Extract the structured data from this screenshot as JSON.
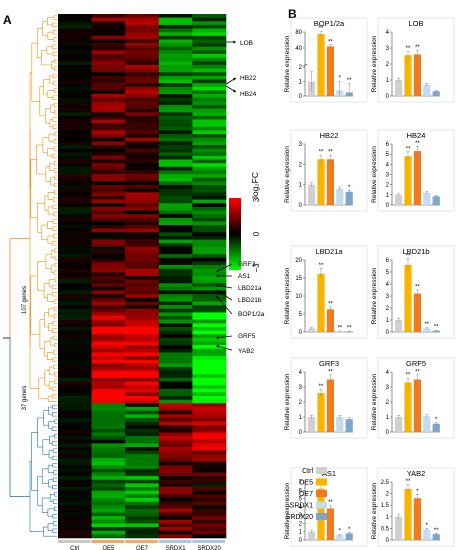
{
  "panel_a": {
    "label": "A",
    "gene_labels_top": [
      "LOB",
      "HB22",
      "HB24"
    ],
    "gene_labels_mid": [
      "GRF3",
      "AS1",
      "LBD21a",
      "LBD21b",
      "BOP1/2a"
    ],
    "gene_labels_bot": [
      "GRF5",
      "YAB2"
    ],
    "cluster_orange_label": "107 genes",
    "cluster_blue_label": "37 genes",
    "columns": [
      "Ctrl",
      "OE5",
      "OE7",
      "SRDX1",
      "SRDX20"
    ],
    "column_colors": [
      "#c8c8c8",
      "#f2a96b",
      "#f2a96b",
      "#a8c8e8",
      "#a8c8e8"
    ],
    "colorbar_title": "log₂FC",
    "colorbar_ticks": [
      "3",
      "0",
      "−3"
    ],
    "colors": {
      "high": "#ff0000",
      "mid": "#000000",
      "low": "#00ff00",
      "tree_orange": "#f0900a",
      "tree_blue": "#1f6fb5"
    }
  },
  "panel_b": {
    "label": "B",
    "ylabel": "Relative expression",
    "legend": [
      "Ctrl",
      "OE5",
      "OE7",
      "SRDX1",
      "SRDX20"
    ],
    "bar_colors": [
      "#d0d0d0",
      "#f7b500",
      "#f07a20",
      "#c5dcef",
      "#7fa5cc"
    ]
  },
  "chart_data": [
    {
      "type": "bar",
      "title": "BOP1/2a",
      "ylabel": "Relative expression",
      "categories": [
        "Ctrl",
        "OE5",
        "OE7",
        "SRDX1",
        "SRDX20"
      ],
      "values": [
        1.0,
        75,
        44,
        0.4,
        0.25
      ],
      "ylim": [
        0,
        80
      ],
      "yticks": [
        "0",
        "1",
        "2",
        "40",
        "80"
      ],
      "sig": [
        "",
        "**",
        "**",
        "*",
        "**"
      ],
      "broken_axis": true
    },
    {
      "type": "bar",
      "title": "LOB",
      "ylabel": "Relative expression",
      "categories": [
        "Ctrl",
        "OE5",
        "OE7",
        "SRDX1",
        "SRDX20"
      ],
      "values": [
        1.0,
        2.55,
        2.6,
        0.7,
        0.3
      ],
      "ylim": [
        0,
        4
      ],
      "yticks": [
        "0",
        "1",
        "2",
        "3",
        "4"
      ],
      "sig": [
        "",
        "**",
        "**",
        "",
        ""
      ]
    },
    {
      "type": "bar",
      "title": "HB22",
      "ylabel": "Relative expression",
      "categories": [
        "Ctrl",
        "OE5",
        "OE7",
        "SRDX1",
        "SRDX20"
      ],
      "values": [
        1.0,
        2.25,
        2.25,
        0.8,
        0.65
      ],
      "ylim": [
        0,
        3
      ],
      "yticks": [
        "0",
        "1",
        "2",
        "3"
      ],
      "sig": [
        "",
        "**",
        "**",
        "",
        "*"
      ]
    },
    {
      "type": "bar",
      "title": "HB24",
      "ylabel": "Relative expression",
      "categories": [
        "Ctrl",
        "OE5",
        "OE7",
        "SRDX1",
        "SRDX20"
      ],
      "values": [
        1.0,
        4.8,
        5.3,
        1.2,
        0.85
      ],
      "ylim": [
        0,
        6
      ],
      "yticks": [
        "0",
        "1",
        "2",
        "3",
        "4",
        "5",
        "6"
      ],
      "sig": [
        "",
        "**",
        "**",
        "",
        ""
      ]
    },
    {
      "type": "bar",
      "title": "LBD21a",
      "ylabel": "Relative expression",
      "categories": [
        "Ctrl",
        "OE5",
        "OE7",
        "SRDX1",
        "SRDX20"
      ],
      "values": [
        1.0,
        16.2,
        6.3,
        0.1,
        0.1
      ],
      "ylim": [
        0,
        20
      ],
      "yticks": [
        "0",
        "5",
        "10",
        "15",
        "20"
      ],
      "sig": [
        "",
        "**",
        "**",
        "**",
        "**"
      ]
    },
    {
      "type": "bar",
      "title": "LBD21b",
      "ylabel": "Relative expression",
      "categories": [
        "Ctrl",
        "OE5",
        "OE7",
        "SRDX1",
        "SRDX20"
      ],
      "values": [
        1.0,
        5.6,
        3.2,
        0.3,
        0.1
      ],
      "ylim": [
        0,
        6
      ],
      "yticks": [
        "0",
        "1",
        "2",
        "3",
        "4",
        "5",
        "6"
      ],
      "sig": [
        "",
        "**",
        "**",
        "**",
        "**"
      ]
    },
    {
      "type": "bar",
      "title": "GRF3",
      "ylabel": "Relative expression",
      "categories": [
        "Ctrl",
        "OE5",
        "OE7",
        "SRDX1",
        "SRDX20"
      ],
      "values": [
        1.0,
        2.6,
        3.5,
        1.0,
        0.85
      ],
      "ylim": [
        0,
        4
      ],
      "yticks": [
        "0",
        "1",
        "2",
        "3",
        "4"
      ],
      "sig": [
        "",
        "**",
        "**",
        "",
        ""
      ]
    },
    {
      "type": "bar",
      "title": "GRF5",
      "ylabel": "Relative expression",
      "categories": [
        "Ctrl",
        "OE5",
        "OE7",
        "SRDX1",
        "SRDX20"
      ],
      "values": [
        1.0,
        3.3,
        3.5,
        1.05,
        0.55
      ],
      "ylim": [
        0,
        4
      ],
      "yticks": [
        "0",
        "1",
        "2",
        "3",
        "4"
      ],
      "sig": [
        "",
        "**",
        "**",
        "",
        "*"
      ]
    },
    {
      "type": "bar",
      "title": "AS1",
      "ylabel": "Relative expression",
      "categories": [
        "Ctrl",
        "OE5",
        "OE7",
        "SRDX1",
        "SRDX20"
      ],
      "values": [
        1.0,
        6.2,
        3.8,
        0.6,
        0.8
      ],
      "ylim": [
        0,
        7
      ],
      "yticks": [
        "0",
        "1",
        "2",
        "3",
        "4",
        "5",
        "6",
        "7"
      ],
      "sig": [
        "",
        "**",
        "**",
        "*",
        "*"
      ]
    },
    {
      "type": "bar",
      "title": "YAB2",
      "ylabel": "Relative expression",
      "categories": [
        "Ctrl",
        "OE5",
        "OE7",
        "SRDX1",
        "SRDX20"
      ],
      "values": [
        1.0,
        2.2,
        1.8,
        0.45,
        0.25
      ],
      "ylim": [
        0,
        2.5
      ],
      "yticks": [
        "0",
        "0.5",
        "1",
        "1.5",
        "2",
        "2.5"
      ],
      "sig": [
        "",
        "**",
        "*",
        "*",
        "**"
      ]
    }
  ]
}
